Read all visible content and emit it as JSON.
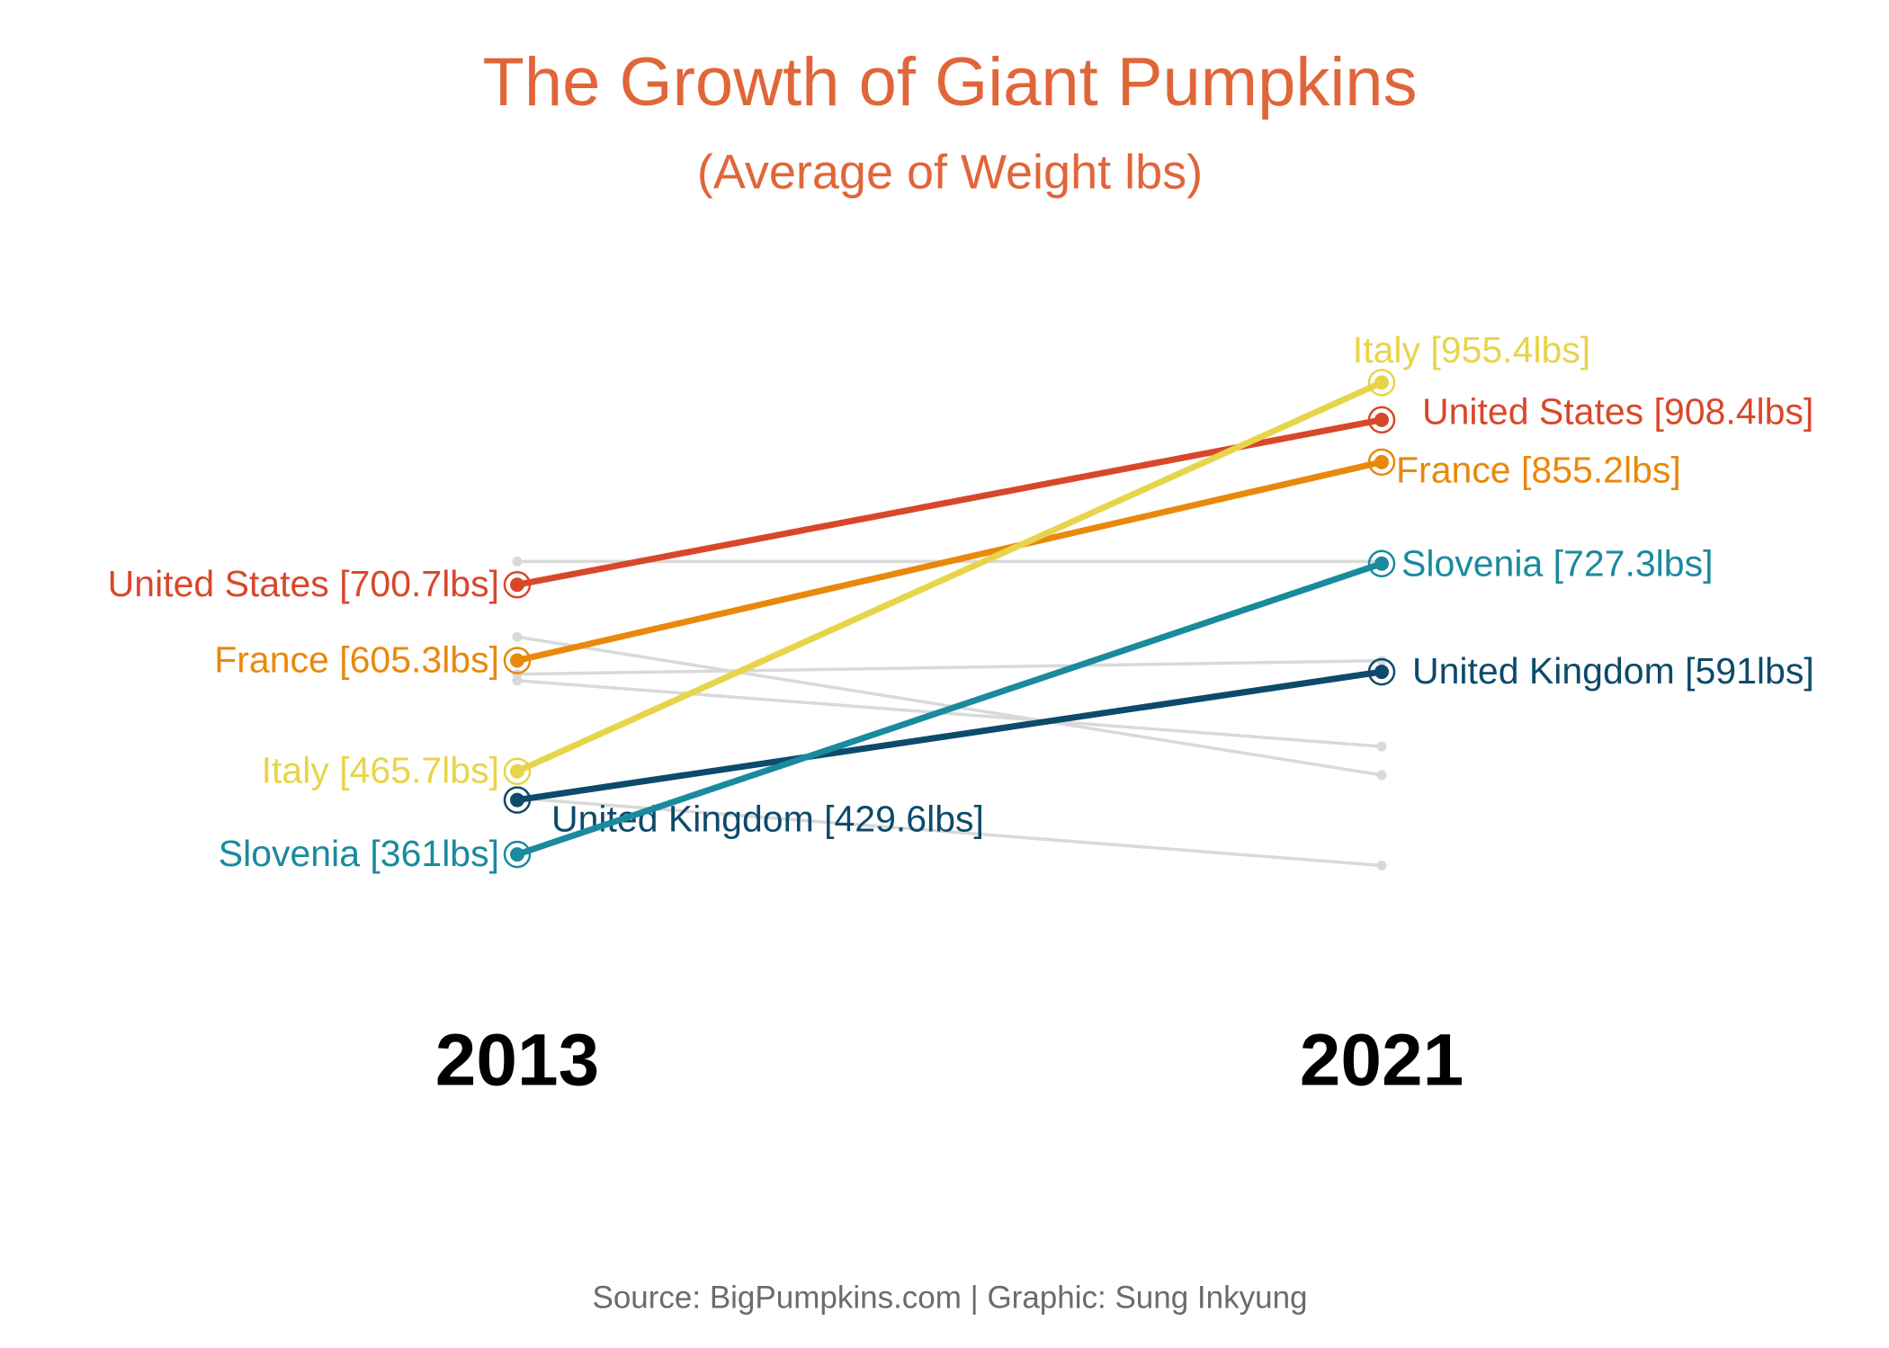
{
  "chart_data": {
    "type": "slope",
    "title": "The Growth of Giant Pumpkins",
    "subtitle": "(Average of Weight lbs)",
    "source": "Source: BigPumpkins.com | Graphic: Sung Inkyung",
    "categories": [
      "2013",
      "2021"
    ],
    "ylim": [
      300,
      1000
    ],
    "series": [
      {
        "color": "#d9d9d9",
        "values": [
          730,
          730
        ]
      },
      {
        "color": "#d9d9d9",
        "values": [
          635,
          461
        ]
      },
      {
        "color": "#d9d9d9",
        "values": [
          588,
          605
        ]
      },
      {
        "color": "#d9d9d9",
        "values": [
          580,
          497
        ]
      },
      {
        "color": "#d9d9d9",
        "values": [
          432,
          347
        ]
      },
      {
        "name": "United States",
        "color": "#d9472b",
        "values": [
          700.7,
          908.4
        ],
        "value_labels": [
          "United States [700.7lbs]",
          "United States [908.4lbs]"
        ]
      },
      {
        "name": "France",
        "color": "#e8890c",
        "values": [
          605.3,
          855.2
        ],
        "value_labels": [
          "France [605.3lbs]",
          "France [855.2lbs]"
        ]
      },
      {
        "name": "Italy",
        "color": "#e8d44a",
        "values": [
          465.7,
          955.4
        ],
        "value_labels": [
          "Italy [465.7lbs]",
          "Italy [955.4lbs]"
        ]
      },
      {
        "name": "United Kingdom",
        "color": "#0d4a6b",
        "values": [
          429.6,
          591
        ],
        "value_labels": [
          "United Kingdom [429.6lbs]",
          "United Kingdom [591lbs]"
        ]
      },
      {
        "name": "Slovenia",
        "color": "#1a8a9e",
        "values": [
          361,
          727.3
        ],
        "value_labels": [
          "Slovenia [361lbs]",
          "Slovenia [727.3lbs]"
        ]
      }
    ]
  }
}
